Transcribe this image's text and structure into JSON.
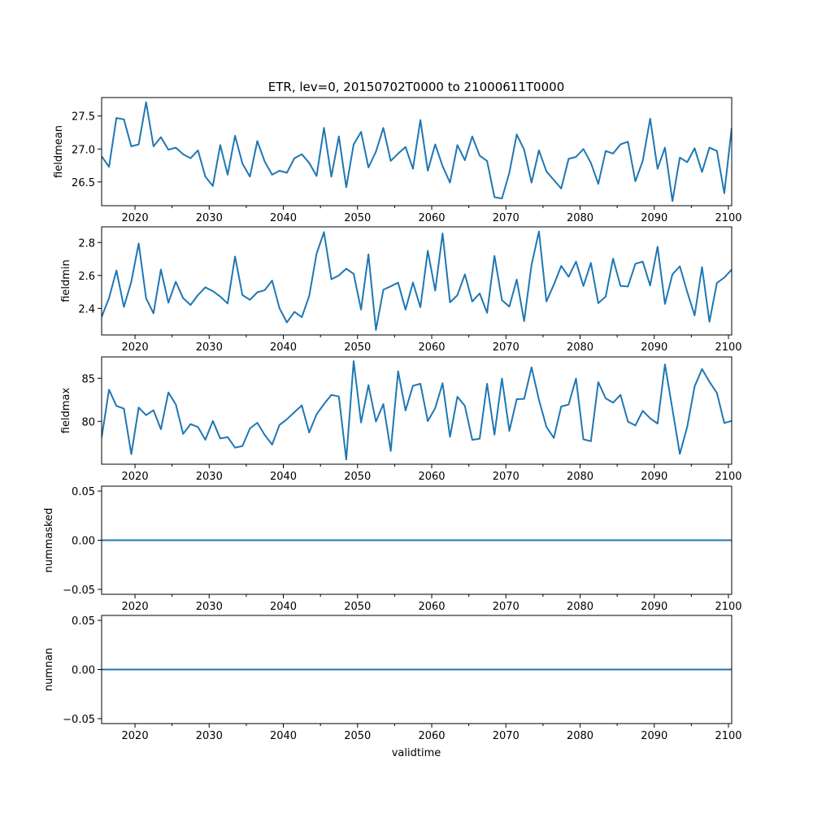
{
  "chart_data": [
    {
      "type": "line",
      "title": "ETR, lev=0, 20150702T0000 to 21000611T0000",
      "xlabel": "",
      "ylabel": "fieldmean",
      "x_start": 2015.5,
      "x_step": 0.99929,
      "xlim": [
        2015.5,
        2100.44
      ],
      "x_ticks": [
        2020,
        2030,
        2040,
        2050,
        2060,
        2070,
        2080,
        2090,
        2100
      ],
      "ylim": [
        26.14,
        27.78
      ],
      "y_ticks": [
        {
          "v": 26.5,
          "label": "26.5"
        },
        {
          "v": 27.0,
          "label": "27.0"
        },
        {
          "v": 27.5,
          "label": "27.5"
        }
      ],
      "color": "#1f77b4",
      "values": [
        26.89,
        26.73,
        27.47,
        27.45,
        27.04,
        27.07,
        27.71,
        27.04,
        27.18,
        26.99,
        27.02,
        26.92,
        26.86,
        26.98,
        26.58,
        26.44,
        27.06,
        26.61,
        27.2,
        26.78,
        26.58,
        27.12,
        26.81,
        26.61,
        26.67,
        26.64,
        26.86,
        26.92,
        26.79,
        26.59,
        27.32,
        26.58,
        27.19,
        26.42,
        27.07,
        27.26,
        26.72,
        26.96,
        27.32,
        26.82,
        26.93,
        27.03,
        26.7,
        27.44,
        26.67,
        27.07,
        26.74,
        26.49,
        27.06,
        26.83,
        27.19,
        26.9,
        26.82,
        26.27,
        26.25,
        26.64,
        27.22,
        26.99,
        26.49,
        26.98,
        26.66,
        26.53,
        26.4,
        26.85,
        26.88,
        27.0,
        26.79,
        26.47,
        26.97,
        26.93,
        27.07,
        27.11,
        26.51,
        26.82,
        27.46,
        26.7,
        27.02,
        26.21,
        26.87,
        26.8,
        27.01,
        26.65,
        27.02,
        26.97,
        26.33,
        27.32
      ]
    },
    {
      "type": "line",
      "ylabel": "fieldmin",
      "x_start": 2015.5,
      "x_step": 0.99929,
      "xlim": [
        2015.5,
        2100.44
      ],
      "x_ticks": [
        2020,
        2030,
        2040,
        2050,
        2060,
        2070,
        2080,
        2090,
        2100
      ],
      "ylim": [
        2.239,
        2.895
      ],
      "y_ticks": [
        {
          "v": 2.4,
          "label": "2.4"
        },
        {
          "v": 2.6,
          "label": "2.6"
        },
        {
          "v": 2.8,
          "label": "2.8"
        }
      ],
      "color": "#1f77b4",
      "values": [
        2.348,
        2.463,
        2.63,
        2.409,
        2.562,
        2.794,
        2.462,
        2.37,
        2.636,
        2.435,
        2.562,
        2.462,
        2.421,
        2.481,
        2.528,
        2.505,
        2.472,
        2.43,
        2.715,
        2.481,
        2.452,
        2.498,
        2.511,
        2.569,
        2.401,
        2.315,
        2.379,
        2.347,
        2.475,
        2.732,
        2.863,
        2.577,
        2.6,
        2.641,
        2.61,
        2.393,
        2.728,
        2.269,
        2.513,
        2.534,
        2.556,
        2.393,
        2.557,
        2.407,
        2.75,
        2.508,
        2.855,
        2.437,
        2.48,
        2.607,
        2.442,
        2.491,
        2.373,
        2.719,
        2.45,
        2.411,
        2.575,
        2.323,
        2.664,
        2.867,
        2.442,
        2.544,
        2.658,
        2.592,
        2.684,
        2.536,
        2.676,
        2.432,
        2.472,
        2.702,
        2.536,
        2.533,
        2.671,
        2.684,
        2.539,
        2.774,
        2.427,
        2.607,
        2.656,
        2.5,
        2.358,
        2.651,
        2.319,
        2.554,
        2.587,
        2.636
      ]
    },
    {
      "type": "line",
      "ylabel": "fieldmax",
      "x_start": 2015.5,
      "x_step": 0.99929,
      "xlim": [
        2015.5,
        2100.44
      ],
      "x_ticks": [
        2020,
        2030,
        2040,
        2050,
        2060,
        2070,
        2080,
        2090,
        2100
      ],
      "ylim": [
        75.03,
        87.48
      ],
      "y_ticks": [
        {
          "v": 80,
          "label": "80"
        },
        {
          "v": 85,
          "label": "85"
        }
      ],
      "color": "#1f77b4",
      "values": [
        78.11,
        83.68,
        81.79,
        81.48,
        76.19,
        81.6,
        80.72,
        81.29,
        79.09,
        83.36,
        81.98,
        78.55,
        79.69,
        79.34,
        77.86,
        80.06,
        78.02,
        78.18,
        76.95,
        77.14,
        79.18,
        79.84,
        78.43,
        77.3,
        79.59,
        80.25,
        81.07,
        81.86,
        78.71,
        80.82,
        82.01,
        83.08,
        82.89,
        75.57,
        86.98,
        79.87,
        84.21,
        79.97,
        82.01,
        76.57,
        85.82,
        81.26,
        84.12,
        84.37,
        80.03,
        81.54,
        84.43,
        78.21,
        82.86,
        81.79,
        77.86,
        77.99,
        84.37,
        78.46,
        84.97,
        78.9,
        82.58,
        82.61,
        86.26,
        82.52,
        79.37,
        78.08,
        81.73,
        81.95,
        84.97,
        77.92,
        77.7,
        84.56,
        82.67,
        82.17,
        83.08,
        79.97,
        79.53,
        81.23,
        80.35,
        79.75,
        86.6,
        81.42,
        76.23,
        79.37,
        84.06,
        86.07,
        84.59,
        83.3,
        79.81,
        80.06
      ]
    },
    {
      "type": "line",
      "ylabel": "nummasked",
      "x_start": 2015.5,
      "x_step": 0.99929,
      "xlim": [
        2015.5,
        2100.44
      ],
      "x_ticks": [
        2020,
        2030,
        2040,
        2050,
        2060,
        2070,
        2080,
        2090,
        2100
      ],
      "ylim": [
        -0.055,
        0.055
      ],
      "y_ticks": [
        {
          "v": -0.05,
          "label": "−0.05"
        },
        {
          "v": 0,
          "label": "0.00"
        },
        {
          "v": 0.05,
          "label": "0.05"
        }
      ],
      "color": "#1f77b4",
      "constant_value": 0,
      "n_points": 86
    },
    {
      "type": "line",
      "xlabel": "validtime",
      "ylabel": "numnan",
      "x_start": 2015.5,
      "x_step": 0.99929,
      "xlim": [
        2015.5,
        2100.44
      ],
      "x_ticks": [
        2020,
        2030,
        2040,
        2050,
        2060,
        2070,
        2080,
        2090,
        2100
      ],
      "ylim": [
        -0.055,
        0.055
      ],
      "y_ticks": [
        {
          "v": -0.05,
          "label": "−0.05"
        },
        {
          "v": 0,
          "label": "0.00"
        },
        {
          "v": 0.05,
          "label": "0.05"
        }
      ],
      "color": "#1f77b4",
      "constant_value": 0,
      "n_points": 86
    }
  ]
}
